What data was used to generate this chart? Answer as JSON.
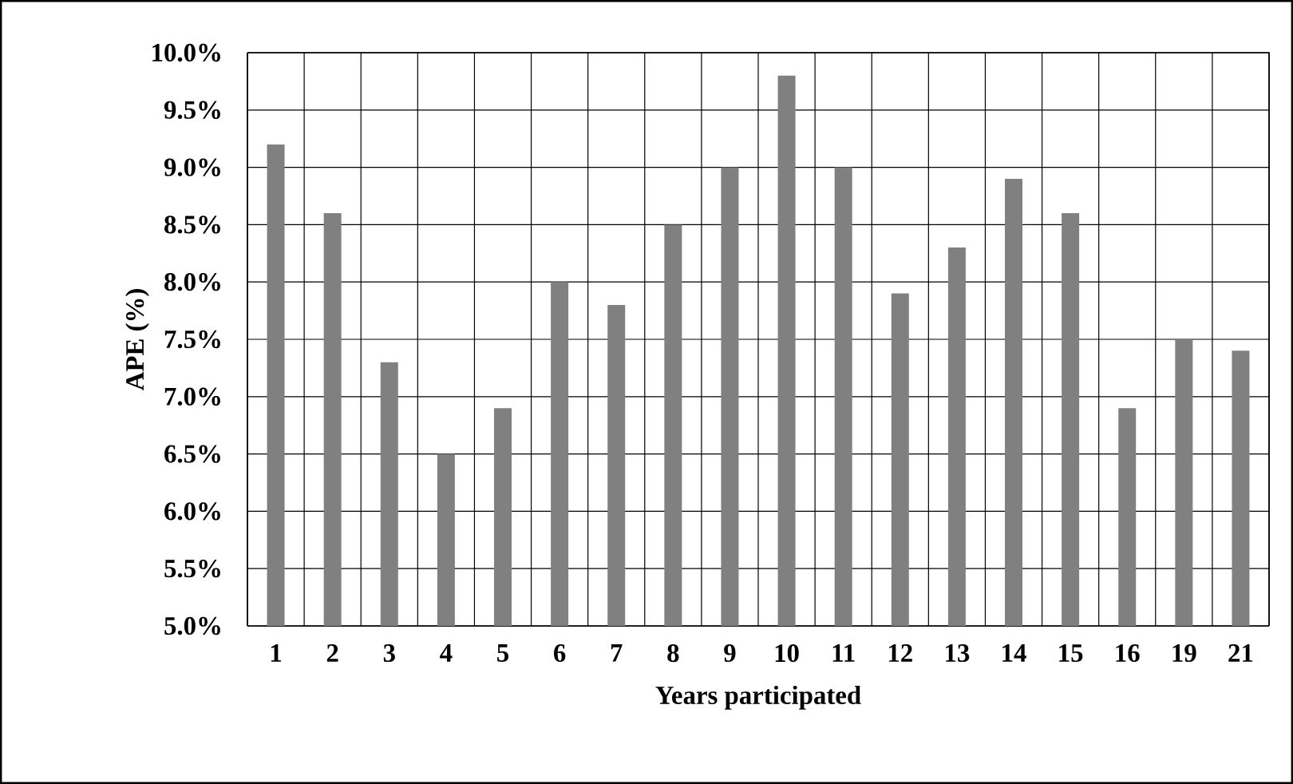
{
  "chart_data": {
    "type": "bar",
    "xlabel": "Years participated",
    "ylabel": "APE (%)",
    "categories": [
      "1",
      "2",
      "3",
      "4",
      "5",
      "6",
      "7",
      "8",
      "9",
      "10",
      "11",
      "12",
      "13",
      "14",
      "15",
      "16",
      "19",
      "21"
    ],
    "values": [
      9.2,
      8.6,
      7.3,
      6.5,
      6.9,
      8.0,
      7.8,
      8.5,
      9.0,
      9.8,
      9.0,
      7.9,
      8.3,
      8.9,
      8.6,
      6.9,
      7.5,
      7.4
    ],
    "color": "#808080",
    "ylim": [
      5.0,
      10.0
    ],
    "yticks": [
      {
        "value": 5.0,
        "label": "5.0%"
      },
      {
        "value": 5.5,
        "label": "5.5%"
      },
      {
        "value": 6.0,
        "label": "6.0%"
      },
      {
        "value": 6.5,
        "label": "6.5%"
      },
      {
        "value": 7.0,
        "label": "7.0%"
      },
      {
        "value": 7.5,
        "label": "7.5%"
      },
      {
        "value": 8.0,
        "label": "8.0%"
      },
      {
        "value": 8.5,
        "label": "8.5%"
      },
      {
        "value": 9.0,
        "label": "9.0%"
      },
      {
        "value": 9.5,
        "label": "9.5%"
      },
      {
        "value": 10.0,
        "label": "10.0%"
      }
    ],
    "grid": true
  }
}
